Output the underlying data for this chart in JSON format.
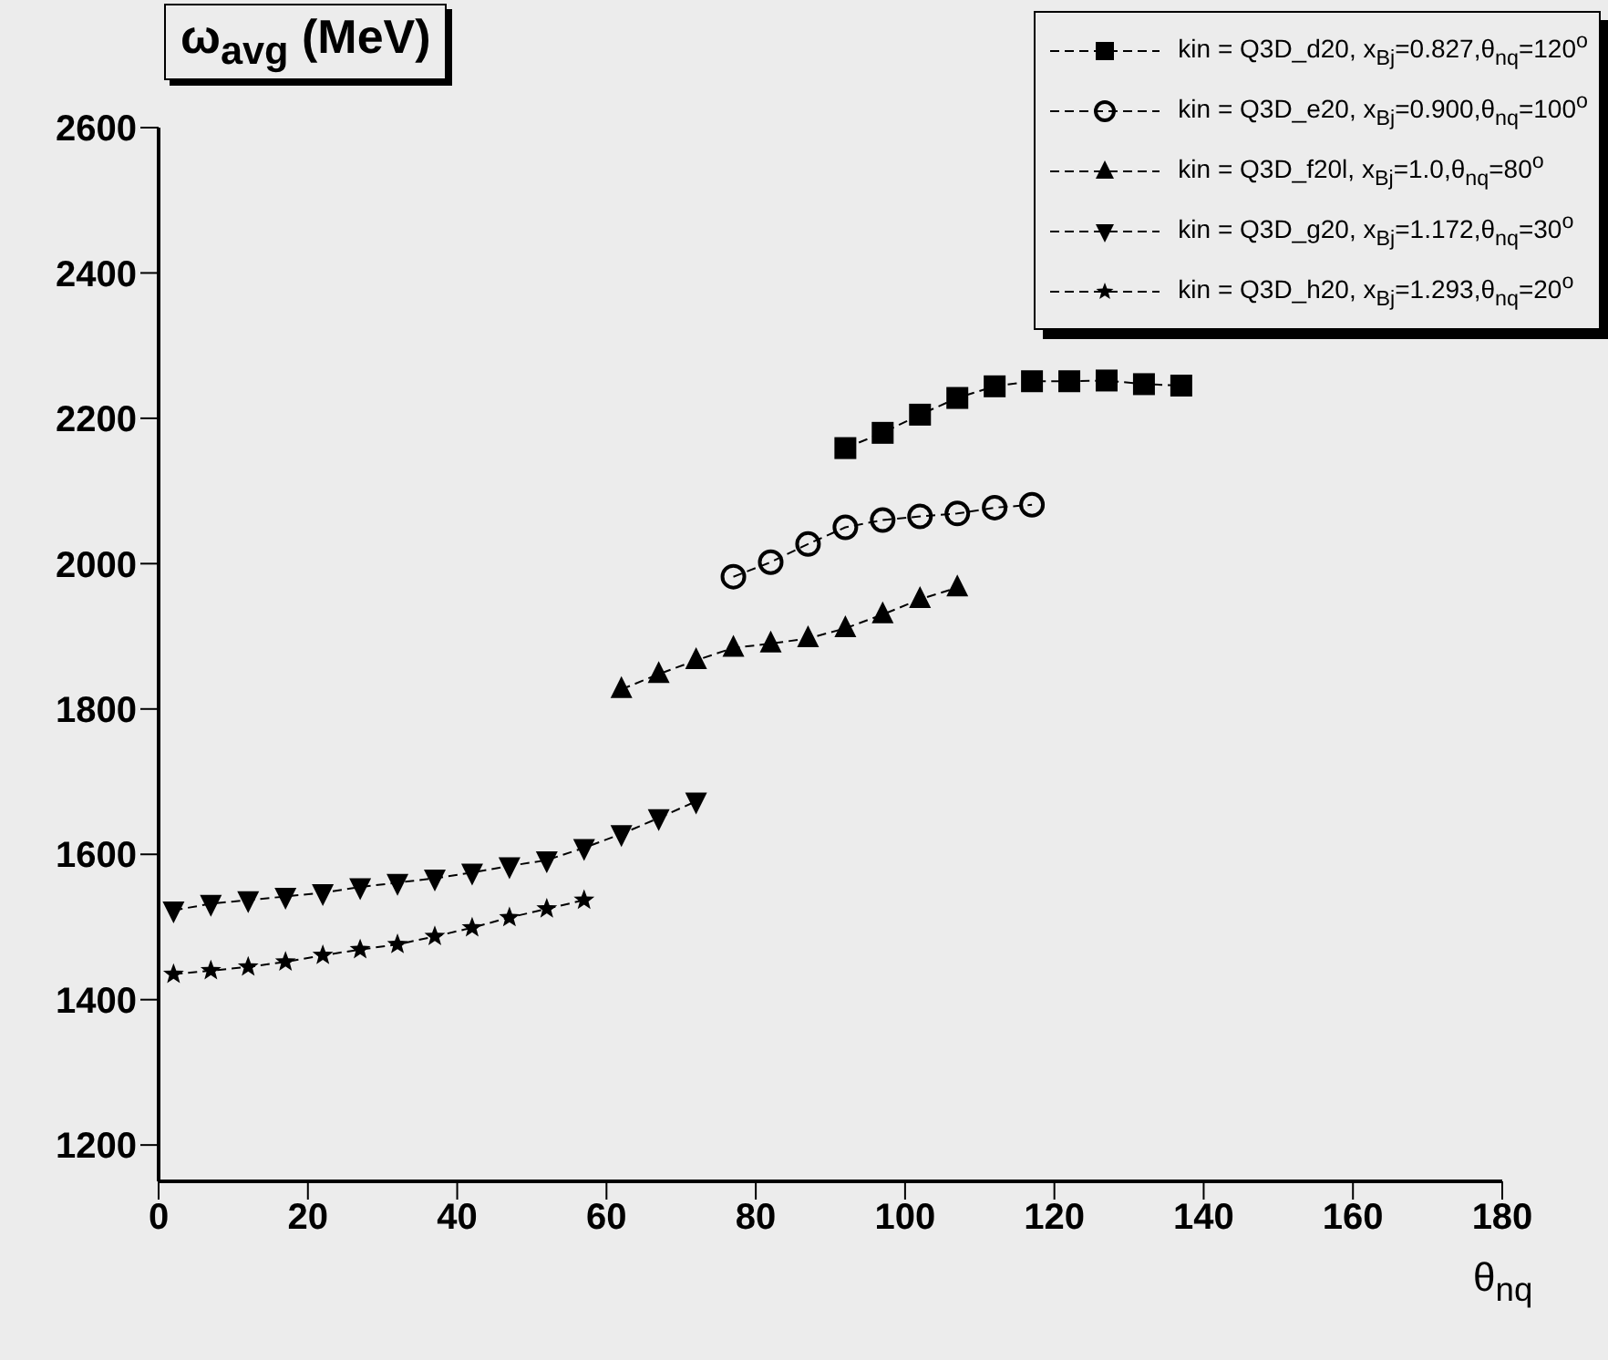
{
  "chart_data": {
    "type": "line",
    "title": "ω$_{avg}$ (MeV)",
    "xlabel": "θ$_{nq}$",
    "xlim": [
      0,
      180
    ],
    "xticks": [
      0,
      20,
      40,
      60,
      80,
      100,
      120,
      140,
      160,
      180
    ],
    "ylim": [
      1150,
      2600
    ],
    "yticks": [
      1200,
      1400,
      1600,
      1800,
      2000,
      2200,
      2400,
      2600
    ],
    "grid": false,
    "legend": "top right",
    "line_style": "dashed",
    "series": [
      {
        "name": "kin = Q3D_d20, x$_{Bj}$=0.827,θ$_{nq}$=120$^{o}$",
        "color": "#000000",
        "marker": "square",
        "x": [
          92,
          97,
          102,
          107,
          112,
          117,
          122,
          127,
          132,
          137
        ],
        "values": [
          2159,
          2180,
          2205,
          2228,
          2244,
          2251,
          2251,
          2252,
          2247,
          2245
        ]
      },
      {
        "name": "kin = Q3D_e20, x$_{Bj}$=0.900,θ$_{nq}$=100$^{o}$",
        "color": "#000000",
        "marker": "circle",
        "x": [
          77,
          82,
          87,
          92,
          97,
          102,
          107,
          112,
          117
        ],
        "values": [
          1982,
          2002,
          2027,
          2050,
          2060,
          2065,
          2069,
          2077,
          2081
        ]
      },
      {
        "name": "kin = Q3D_f20l, x$_{Bj}$=1.0,θ$_{nq}$=80$^{o}$",
        "color": "#000000",
        "marker": "triangle",
        "x": [
          62,
          67,
          72,
          77,
          82,
          87,
          92,
          97,
          102,
          107
        ],
        "values": [
          1827,
          1848,
          1867,
          1884,
          1890,
          1897,
          1911,
          1930,
          1951,
          1967
        ]
      },
      {
        "name": "kin = Q3D_g20, x$_{Bj}$=1.172,θ$_{nq}$=30$^{o}$",
        "color": "#000000",
        "marker": "triangle-down",
        "x": [
          2,
          7,
          12,
          17,
          22,
          27,
          32,
          37,
          42,
          47,
          52,
          57,
          62,
          67,
          72
        ],
        "values": [
          1523,
          1532,
          1537,
          1542,
          1547,
          1555,
          1561,
          1567,
          1575,
          1584,
          1592,
          1609,
          1628,
          1650,
          1673
        ]
      },
      {
        "name": "kin = Q3D_h20, x$_{Bj}$=1.293,θ$_{nq}$=20$^{o}$",
        "color": "#000000",
        "marker": "star",
        "x": [
          2,
          7,
          12,
          17,
          22,
          27,
          32,
          37,
          42,
          47,
          52,
          57
        ],
        "values": [
          1435,
          1440,
          1445,
          1452,
          1461,
          1469,
          1476,
          1487,
          1499,
          1513,
          1525,
          1537
        ]
      }
    ]
  }
}
